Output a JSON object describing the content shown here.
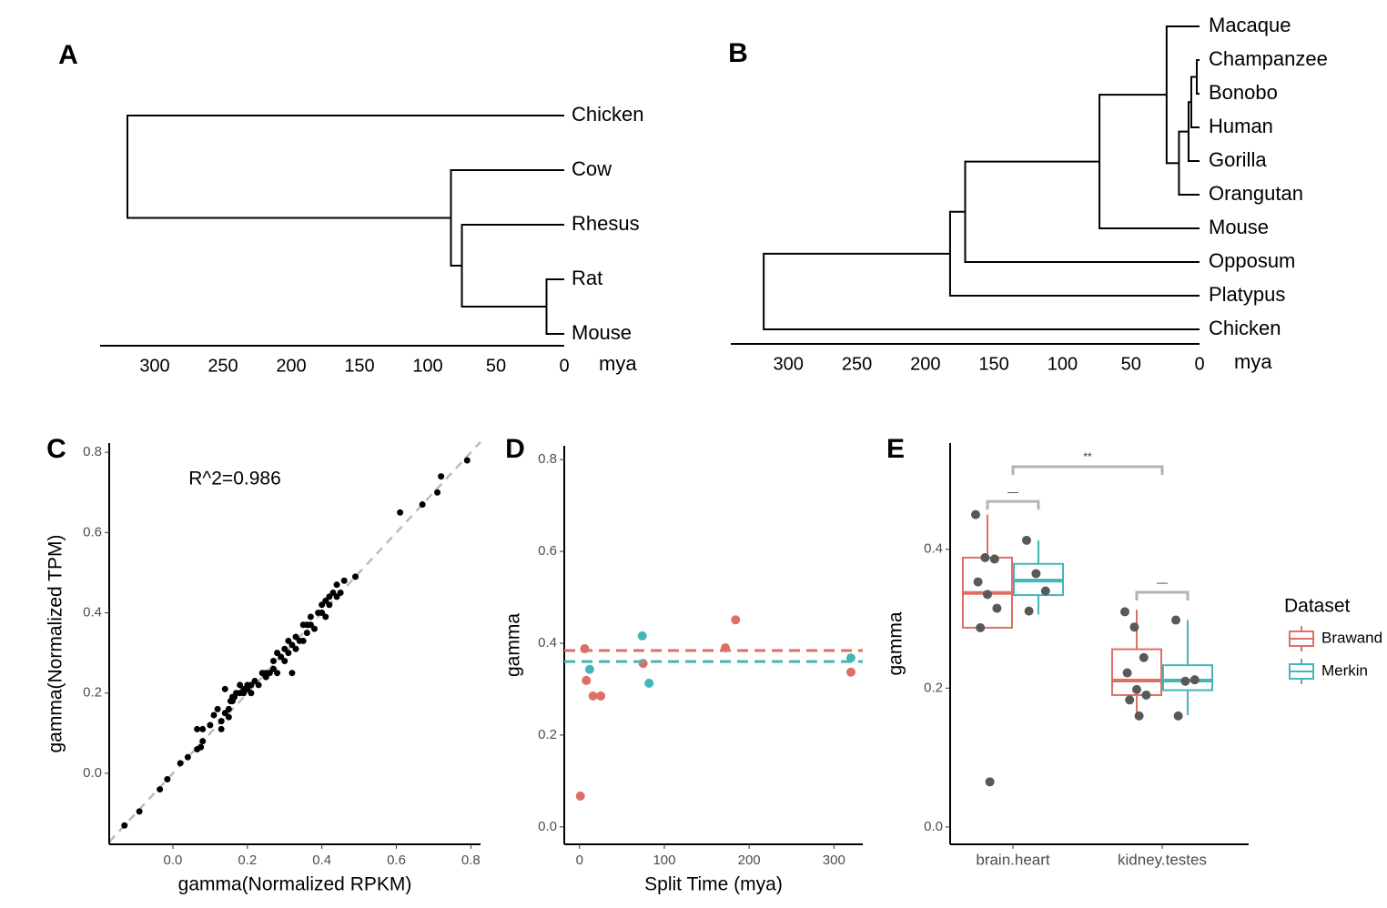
{
  "chart_data": [
    {
      "type": "dendrogram",
      "label": "A",
      "x_label": "mya",
      "xlim": [
        340,
        0
      ],
      "xticks": [
        300,
        250,
        200,
        150,
        100,
        50,
        0
      ],
      "tree": {
        "height": 320,
        "children": [
          {
            "label": "Chicken"
          },
          {
            "height": 83,
            "children": [
              {
                "label": "Cow"
              },
              {
                "height": 75,
                "children": [
                  {
                    "label": "Rhesus"
                  },
                  {
                    "height": 13,
                    "children": [
                      {
                        "label": "Rat"
                      },
                      {
                        "label": "Mouse"
                      }
                    ]
                  }
                ]
              }
            ]
          }
        ]
      }
    },
    {
      "type": "dendrogram",
      "label": "B",
      "x_label": "mya",
      "xlim": [
        342,
        0
      ],
      "xticks": [
        300,
        250,
        200,
        150,
        100,
        50,
        0
      ],
      "tree": {
        "height": 318,
        "children": [
          {
            "height": 182,
            "children": [
              {
                "height": 171,
                "children": [
                  {
                    "height": 73,
                    "children": [
                      {
                        "height": 24,
                        "children": [
                          {
                            "label": "Macaque"
                          },
                          {
                            "height": 15,
                            "children": [
                              {
                                "height": 8,
                                "children": [
                                  {
                                    "height": 6,
                                    "children": [
                                      {
                                        "height": 2,
                                        "children": [
                                          {
                                            "label": "Champanzee"
                                          },
                                          {
                                            "label": "Bonobo"
                                          }
                                        ]
                                      },
                                      {
                                        "label": "Human"
                                      }
                                    ]
                                  },
                                  {
                                    "label": "Gorilla"
                                  }
                                ]
                              },
                              {
                                "label": "Orangutan"
                              }
                            ]
                          }
                        ]
                      },
                      {
                        "label": "Mouse"
                      }
                    ]
                  },
                  {
                    "label": "Opposum"
                  }
                ]
              },
              {
                "label": "Platypus"
              }
            ]
          },
          {
            "label": "Chicken"
          }
        ]
      }
    },
    {
      "type": "scatter",
      "label": "C",
      "x_label": "gamma(Normalized RPKM)",
      "y_label": "gamma(Normalized TPM)",
      "annotation": "R^2=0.986",
      "color": "#000000",
      "reference_line": {
        "slope": 1,
        "intercept": 0,
        "color": "#bbbbbb"
      },
      "xlim": [
        -0.171,
        0.826
      ],
      "ylim": [
        -0.177,
        0.823
      ],
      "xticks": [
        {
          "value": 0,
          "label": "0.0"
        },
        0.2,
        0.4,
        0.6,
        0.8
      ],
      "yticks": [
        {
          "value": 0,
          "label": "0.0"
        },
        0.2,
        0.4,
        0.6,
        0.8
      ],
      "x": [
        -0.13,
        -0.09,
        -0.035,
        -0.015,
        0.02,
        0.04,
        0.065,
        0.065,
        0.075,
        0.08,
        0.08,
        0.1,
        0.11,
        0.12,
        0.13,
        0.13,
        0.14,
        0.14,
        0.15,
        0.15,
        0.155,
        0.16,
        0.16,
        0.165,
        0.17,
        0.18,
        0.18,
        0.19,
        0.19,
        0.2,
        0.2,
        0.21,
        0.21,
        0.22,
        0.23,
        0.24,
        0.25,
        0.25,
        0.26,
        0.27,
        0.27,
        0.28,
        0.28,
        0.29,
        0.3,
        0.3,
        0.31,
        0.31,
        0.32,
        0.32,
        0.33,
        0.33,
        0.34,
        0.35,
        0.35,
        0.36,
        0.36,
        0.37,
        0.37,
        0.38,
        0.39,
        0.4,
        0.4,
        0.41,
        0.41,
        0.42,
        0.42,
        0.43,
        0.44,
        0.44,
        0.45,
        0.46,
        0.49,
        0.61,
        0.67,
        0.71,
        0.72,
        0.79
      ],
      "values": [
        -0.13,
        -0.095,
        -0.04,
        -0.015,
        0.025,
        0.04,
        0.06,
        0.11,
        0.065,
        0.08,
        0.11,
        0.12,
        0.145,
        0.16,
        0.11,
        0.13,
        0.15,
        0.21,
        0.14,
        0.16,
        0.18,
        0.18,
        0.19,
        0.19,
        0.2,
        0.2,
        0.22,
        0.2,
        0.21,
        0.21,
        0.22,
        0.2,
        0.22,
        0.23,
        0.22,
        0.25,
        0.24,
        0.25,
        0.25,
        0.26,
        0.28,
        0.25,
        0.3,
        0.29,
        0.28,
        0.31,
        0.3,
        0.33,
        0.25,
        0.32,
        0.31,
        0.34,
        0.33,
        0.33,
        0.37,
        0.37,
        0.35,
        0.37,
        0.39,
        0.36,
        0.4,
        0.4,
        0.42,
        0.39,
        0.43,
        0.44,
        0.42,
        0.45,
        0.44,
        0.47,
        0.45,
        0.48,
        0.49,
        0.65,
        0.67,
        0.7,
        0.74,
        0.78
      ]
    },
    {
      "type": "scatter",
      "label": "D",
      "x_label": "Split Time (mya)",
      "y_label": "gamma",
      "xlim": [
        -18,
        334
      ],
      "ylim": [
        -0.038,
        0.83
      ],
      "xticks": [
        0,
        100,
        200,
        300
      ],
      "yticks": [
        {
          "value": 0,
          "label": "0.0"
        },
        0.2,
        0.4,
        0.6,
        0.8
      ],
      "series": [
        {
          "name": "Brawand",
          "color": "#dd6f66",
          "hline": 0.384,
          "x": [
            1,
            6,
            8,
            16,
            25,
            75,
            172,
            184,
            320
          ],
          "values": [
            0.067,
            0.388,
            0.319,
            0.285,
            0.285,
            0.356,
            0.39,
            0.451,
            0.337
          ]
        },
        {
          "name": "Merkin",
          "color": "#45b5b8",
          "hline": 0.36,
          "x": [
            12,
            74,
            82,
            320
          ],
          "values": [
            0.343,
            0.416,
            0.313,
            0.368
          ]
        }
      ]
    },
    {
      "type": "box",
      "label": "E",
      "y_label": "gamma",
      "legend_title": "Dataset",
      "categories": [
        "brain.heart",
        "kidney.testes"
      ],
      "ylim": [
        -0.025,
        0.553
      ],
      "yticks": [
        {
          "value": 0,
          "label": "0.0"
        },
        0.2,
        0.4
      ],
      "point_color": "#595959",
      "series": [
        {
          "name": "Brawand",
          "color": "#dd6f66",
          "boxes": [
            {
              "min": 0.287,
              "q1": 0.287,
              "median": 0.337,
              "q3": 0.388,
              "max": 0.45
            },
            {
              "min": 0.161,
              "q1": 0.19,
              "median": 0.211,
              "q3": 0.256,
              "max": 0.313
            }
          ],
          "points": [
            [
              0.45,
              0.388,
              0.386,
              0.353,
              0.335,
              0.315,
              0.287,
              0.065
            ],
            [
              0.31,
              0.288,
              0.244,
              0.222,
              0.198,
              0.19,
              0.183,
              0.16
            ]
          ]
        },
        {
          "name": "Merkin",
          "color": "#45b5b8",
          "boxes": [
            {
              "min": 0.306,
              "q1": 0.334,
              "median": 0.355,
              "q3": 0.379,
              "max": 0.413
            },
            {
              "min": 0.161,
              "q1": 0.197,
              "median": 0.211,
              "q3": 0.233,
              "max": 0.298
            }
          ],
          "points": [
            [
              0.413,
              0.365,
              0.34,
              0.311
            ],
            [
              0.298,
              0.21,
              0.212,
              0.16
            ]
          ]
        }
      ],
      "brackets": [
        {
          "label": "**",
          "y": 0.519,
          "from": "brain.heart",
          "to": "kidney.testes"
        },
        {
          "label": "—",
          "y": 0.469,
          "category": "brain.heart"
        },
        {
          "label": "—",
          "y": 0.338,
          "category": "kidney.testes"
        }
      ]
    }
  ]
}
